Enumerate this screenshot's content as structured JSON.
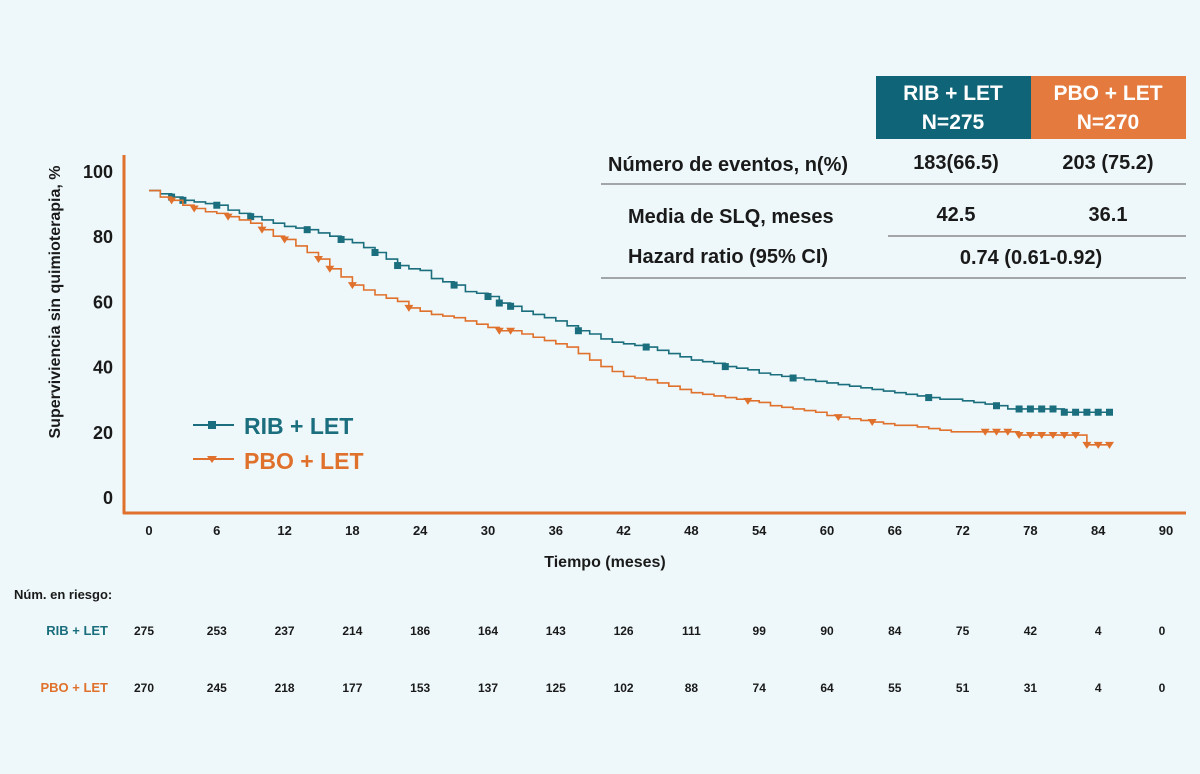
{
  "chart_data": {
    "type": "line",
    "subtype": "kaplan-meier",
    "title": "",
    "xlabel": "Tiempo (meses)",
    "ylabel": "Superviviencia sin quimioterapia, %",
    "xlim": [
      0,
      90
    ],
    "ylim": [
      0,
      100
    ],
    "x_ticks": [
      0,
      6,
      12,
      18,
      24,
      30,
      36,
      42,
      48,
      54,
      60,
      66,
      72,
      78,
      84,
      90
    ],
    "y_ticks": [
      0,
      20,
      40,
      60,
      80,
      100
    ],
    "grid": false,
    "legend_position": "left",
    "series": [
      {
        "name": "RIB + LET",
        "color": "#1b6e7d",
        "marker": "square",
        "points": [
          [
            0,
            94
          ],
          [
            1,
            93
          ],
          [
            2,
            92
          ],
          [
            3,
            91
          ],
          [
            4,
            90.5
          ],
          [
            5,
            90
          ],
          [
            6,
            89.5
          ],
          [
            7,
            88
          ],
          [
            8,
            87
          ],
          [
            9,
            86
          ],
          [
            10,
            85
          ],
          [
            11,
            84
          ],
          [
            12,
            83
          ],
          [
            13,
            82.5
          ],
          [
            14,
            82
          ],
          [
            15,
            81
          ],
          [
            16,
            80
          ],
          [
            17,
            79
          ],
          [
            18,
            78
          ],
          [
            19,
            76.5
          ],
          [
            20,
            75
          ],
          [
            21,
            73
          ],
          [
            22,
            71
          ],
          [
            23,
            70
          ],
          [
            24,
            69.5
          ],
          [
            25,
            67
          ],
          [
            26,
            66
          ],
          [
            27,
            65
          ],
          [
            28,
            63
          ],
          [
            29,
            62.5
          ],
          [
            30,
            61.5
          ],
          [
            31,
            59.5
          ],
          [
            32,
            58.5
          ],
          [
            33,
            57
          ],
          [
            34,
            56
          ],
          [
            35,
            55
          ],
          [
            36,
            54
          ],
          [
            37,
            52.5
          ],
          [
            38,
            51
          ],
          [
            39,
            50
          ],
          [
            40,
            48.5
          ],
          [
            41,
            47.5
          ],
          [
            42,
            47
          ],
          [
            43,
            46.5
          ],
          [
            44,
            46
          ],
          [
            45,
            45
          ],
          [
            46,
            44
          ],
          [
            47,
            43
          ],
          [
            48,
            42
          ],
          [
            49,
            41.5
          ],
          [
            50,
            41
          ],
          [
            51,
            40
          ],
          [
            52,
            39.5
          ],
          [
            53,
            39
          ],
          [
            54,
            38
          ],
          [
            55,
            37.5
          ],
          [
            56,
            37
          ],
          [
            57,
            36.5
          ],
          [
            58,
            36
          ],
          [
            59,
            35.5
          ],
          [
            60,
            35
          ],
          [
            61,
            34.5
          ],
          [
            62,
            34
          ],
          [
            63,
            33.5
          ],
          [
            64,
            33
          ],
          [
            65,
            32.5
          ],
          [
            66,
            32
          ],
          [
            67,
            31.5
          ],
          [
            68,
            31
          ],
          [
            69,
            30.5
          ],
          [
            70,
            30
          ],
          [
            71,
            30
          ],
          [
            72,
            29.5
          ],
          [
            73,
            29
          ],
          [
            74,
            28.5
          ],
          [
            75,
            28
          ],
          [
            76,
            27
          ],
          [
            77,
            27
          ],
          [
            78,
            27
          ],
          [
            80,
            27
          ],
          [
            81,
            26
          ],
          [
            82,
            26
          ],
          [
            83,
            26
          ],
          [
            84,
            26
          ],
          [
            85,
            26
          ]
        ],
        "censor_x": [
          2,
          3,
          6,
          9,
          14,
          17,
          20,
          22,
          27,
          30,
          31,
          32,
          38,
          44,
          51,
          57,
          69,
          75,
          77,
          78,
          79,
          80,
          81,
          82,
          83,
          84,
          85
        ]
      },
      {
        "name": "PBO + LET",
        "color": "#e0712c",
        "marker": "triangle-down",
        "points": [
          [
            0,
            94
          ],
          [
            1,
            92
          ],
          [
            2,
            91
          ],
          [
            3,
            89.5
          ],
          [
            4,
            88.5
          ],
          [
            5,
            87.5
          ],
          [
            6,
            87
          ],
          [
            7,
            86
          ],
          [
            8,
            85
          ],
          [
            9,
            84
          ],
          [
            10,
            82
          ],
          [
            11,
            80
          ],
          [
            12,
            79
          ],
          [
            13,
            77
          ],
          [
            14,
            75
          ],
          [
            15,
            73
          ],
          [
            16,
            70
          ],
          [
            17,
            67.5
          ],
          [
            18,
            65
          ],
          [
            19,
            63.5
          ],
          [
            20,
            62
          ],
          [
            21,
            61
          ],
          [
            22,
            60
          ],
          [
            23,
            58
          ],
          [
            24,
            57
          ],
          [
            25,
            56
          ],
          [
            26,
            55.5
          ],
          [
            27,
            55
          ],
          [
            28,
            54
          ],
          [
            29,
            53
          ],
          [
            30,
            52
          ],
          [
            31,
            51
          ],
          [
            32,
            51
          ],
          [
            33,
            50
          ],
          [
            34,
            49
          ],
          [
            35,
            48
          ],
          [
            36,
            47
          ],
          [
            37,
            46
          ],
          [
            38,
            44
          ],
          [
            39,
            42
          ],
          [
            40,
            40
          ],
          [
            41,
            38.5
          ],
          [
            42,
            37
          ],
          [
            43,
            36.5
          ],
          [
            44,
            36
          ],
          [
            45,
            35
          ],
          [
            46,
            34
          ],
          [
            47,
            33
          ],
          [
            48,
            32
          ],
          [
            49,
            31.5
          ],
          [
            50,
            31
          ],
          [
            51,
            30.5
          ],
          [
            52,
            30
          ],
          [
            53,
            29.5
          ],
          [
            54,
            29
          ],
          [
            55,
            28
          ],
          [
            56,
            27.5
          ],
          [
            57,
            27
          ],
          [
            58,
            26.5
          ],
          [
            59,
            26
          ],
          [
            60,
            25
          ],
          [
            61,
            24.5
          ],
          [
            62,
            24
          ],
          [
            63,
            23.5
          ],
          [
            64,
            23
          ],
          [
            65,
            22.5
          ],
          [
            66,
            22
          ],
          [
            67,
            22
          ],
          [
            68,
            21.5
          ],
          [
            69,
            21
          ],
          [
            70,
            20.5
          ],
          [
            71,
            20
          ],
          [
            72,
            20
          ],
          [
            73,
            20
          ],
          [
            74,
            20
          ],
          [
            75,
            20
          ],
          [
            76,
            20
          ],
          [
            77,
            19
          ],
          [
            78,
            19
          ],
          [
            80,
            19
          ],
          [
            81,
            19
          ],
          [
            82,
            19
          ],
          [
            83,
            16
          ],
          [
            84,
            16
          ],
          [
            85,
            16
          ]
        ],
        "censor_x": [
          2,
          4,
          7,
          10,
          12,
          15,
          16,
          18,
          23,
          31,
          32,
          53,
          61,
          64,
          74,
          75,
          76,
          77,
          78,
          79,
          80,
          81,
          82,
          83,
          84,
          85
        ]
      }
    ]
  },
  "legend": [
    {
      "label": "RIB + LET",
      "color": "#1b6e7d"
    },
    {
      "label": "PBO + LET",
      "color": "#e0712c"
    }
  ],
  "summary_table": {
    "header_rib_line1": "RIB + LET",
    "header_rib_line2": "N=275",
    "header_pbo_line1": "PBO + LET",
    "header_pbo_line2": "N=270",
    "row1_label": "Número de eventos, n(%)",
    "row1_rib": "183(66.5)",
    "row1_pbo": "203 (75.2)",
    "row2_label": "Media de SLQ, meses",
    "row2_rib": "42.5",
    "row2_pbo": "36.1",
    "row3_label": "Hazard ratio (95% CI)",
    "row3_value": "0.74 (0.61-0.92)",
    "rib_color": "#0f6577",
    "pbo_color": "#e47a3d"
  },
  "risk_table": {
    "title": "Núm. en riesgo:",
    "rows": [
      {
        "label": "RIB + LET",
        "color": "#1b6e7d",
        "values": [
          "275",
          "253",
          "237",
          "214",
          "186",
          "164",
          "143",
          "126",
          "111",
          "99",
          "90",
          "84",
          "75",
          "42",
          "4",
          "0"
        ]
      },
      {
        "label": "PBO + LET",
        "color": "#e0712c",
        "values": [
          "270",
          "245",
          "218",
          "177",
          "153",
          "137",
          "125",
          "102",
          "88",
          "74",
          "64",
          "55",
          "51",
          "31",
          "4",
          "0"
        ]
      }
    ]
  }
}
